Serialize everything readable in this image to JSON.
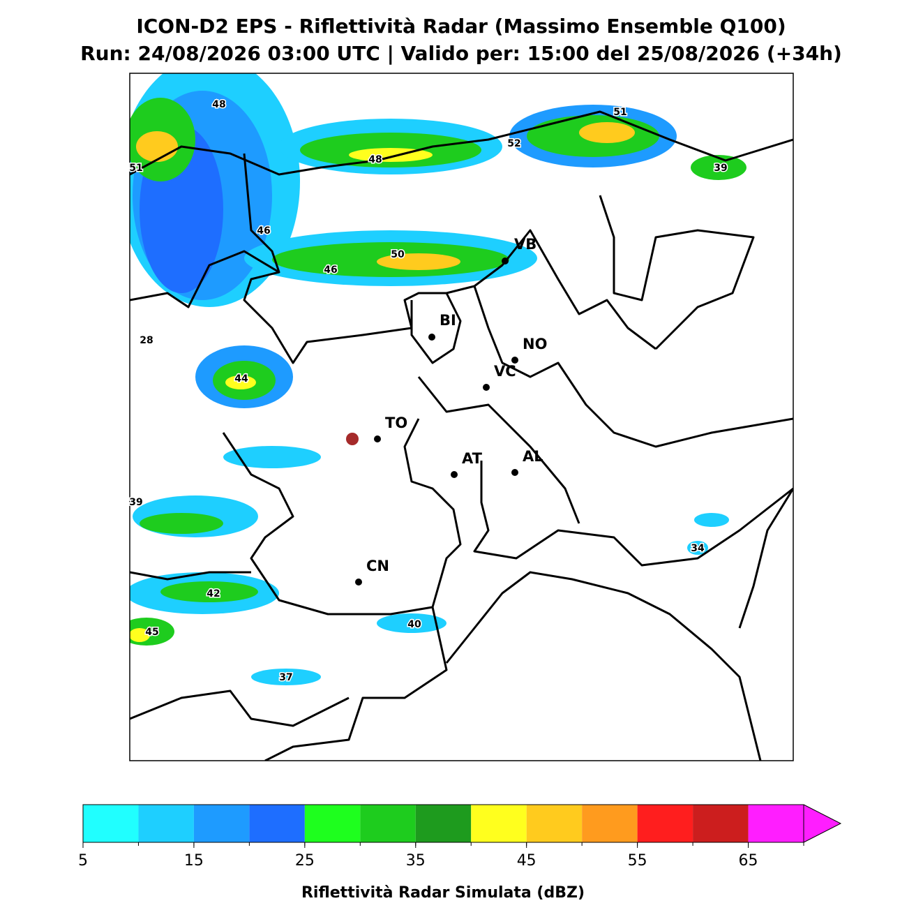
{
  "title": "ICON-D2 EPS - Riflettività Radar (Massimo Ensemble Q100)",
  "subtitle": "Run: 24/08/2026 03:00 UTC | Valido per: 15:00 del 25/08/2026 (+34h)",
  "map": {
    "cities": [
      "VB",
      "BI",
      "NO",
      "VC",
      "TO",
      "AT",
      "AL",
      "CN"
    ],
    "max_labels": [
      48,
      51,
      52,
      51,
      39,
      48,
      46,
      50,
      46,
      28,
      44,
      39,
      42,
      45,
      40,
      37,
      34
    ]
  },
  "colorbar": {
    "bins": [
      5,
      10,
      15,
      20,
      25,
      30,
      35,
      40,
      45,
      50,
      55,
      60,
      65,
      70
    ],
    "colors": [
      "#20ffff",
      "#1ecfff",
      "#1e9bff",
      "#1e6eff",
      "#1eff1e",
      "#1ecc1e",
      "#1e9b1e",
      "#ffff1e",
      "#ffcb1e",
      "#ff9b1e",
      "#ff1e1e",
      "#cc1e1e",
      "#ff1eff"
    ],
    "extend_color": "#ff1eff",
    "ticks": [
      5,
      15,
      25,
      35,
      45,
      55,
      65
    ],
    "label": "Riflettività Radar Simulata (dBZ)"
  }
}
